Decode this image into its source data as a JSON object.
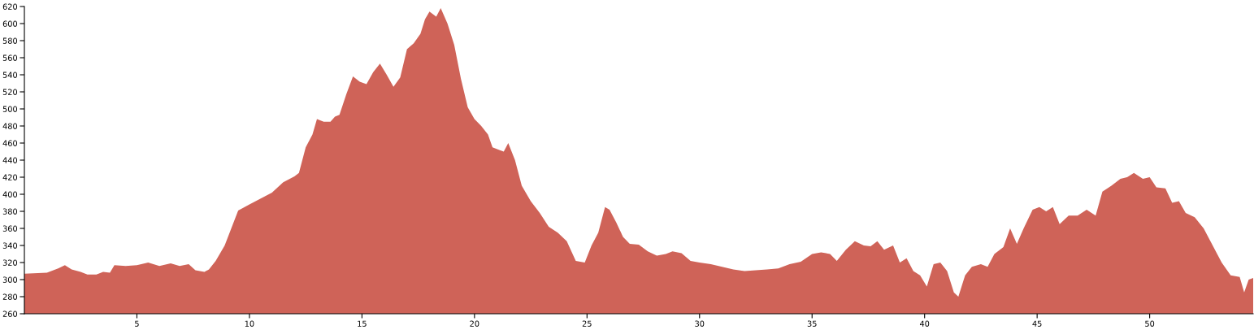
{
  "chart_data": {
    "type": "area",
    "color": "#cf6358",
    "xlim": [
      0,
      54.6
    ],
    "ylim": [
      260,
      620
    ],
    "xticks": [
      5,
      10,
      15,
      20,
      25,
      30,
      35,
      40,
      45,
      50
    ],
    "yticks": [
      260,
      280,
      300,
      320,
      340,
      360,
      380,
      400,
      420,
      440,
      460,
      480,
      500,
      520,
      540,
      560,
      580,
      600,
      620
    ],
    "grid": false,
    "legend": false,
    "x": [
      0,
      1,
      1.5,
      1.8,
      2.1,
      2.5,
      2.8,
      3.2,
      3.5,
      3.8,
      4.0,
      4.5,
      5.0,
      5.5,
      6.0,
      6.5,
      6.9,
      7.3,
      7.6,
      8.0,
      8.2,
      8.5,
      8.9,
      9.5,
      10,
      10.5,
      11,
      11.5,
      12,
      12.2,
      12.5,
      12.8,
      13.0,
      13.3,
      13.6,
      13.8,
      14.0,
      14.3,
      14.6,
      14.9,
      15.2,
      15.5,
      15.8,
      16.1,
      16.4,
      16.7,
      17.0,
      17.3,
      17.6,
      17.8,
      18.0,
      18.3,
      18.5,
      18.8,
      19.1,
      19.4,
      19.7,
      20.0,
      20.3,
      20.6,
      20.8,
      21.1,
      21.3,
      21.5,
      21.8,
      22.1,
      22.5,
      22.9,
      23.3,
      23.7,
      24.1,
      24.5,
      24.9,
      25.2,
      25.5,
      25.8,
      26.0,
      26.3,
      26.6,
      26.9,
      27.3,
      27.7,
      28.1,
      28.5,
      28.8,
      29.2,
      29.6,
      30.0,
      30.5,
      31.0,
      31.5,
      32.0,
      32.5,
      33.0,
      33.5,
      34.0,
      34.5,
      35.0,
      35.4,
      35.8,
      36.1,
      36.5,
      36.9,
      37.3,
      37.6,
      37.9,
      38.2,
      38.6,
      38.9,
      39.2,
      39.5,
      39.8,
      40.1,
      40.4,
      40.7,
      41.0,
      41.3,
      41.5,
      41.8,
      42.1,
      42.5,
      42.8,
      43.1,
      43.5,
      43.8,
      44.1,
      44.4,
      44.8,
      45.1,
      45.4,
      45.7,
      46.0,
      46.4,
      46.8,
      47.2,
      47.6,
      47.9,
      48.3,
      48.7,
      49.0,
      49.3,
      49.7,
      50.0,
      50.3,
      50.7,
      51.0,
      51.3,
      51.6,
      52.0,
      52.4,
      52.8,
      53.2,
      53.6,
      54.0,
      54.2,
      54.4,
      54.6
    ],
    "values": [
      307,
      308,
      313,
      317,
      312,
      309,
      306,
      306,
      309,
      308,
      317,
      316,
      317,
      320,
      316,
      319,
      316,
      318,
      311,
      309,
      312,
      322,
      340,
      381,
      388,
      395,
      402,
      414,
      421,
      425,
      455,
      470,
      488,
      485,
      485,
      491,
      493,
      517,
      538,
      532,
      529,
      543,
      553,
      540,
      526,
      537,
      570,
      577,
      588,
      605,
      614,
      608,
      618,
      600,
      575,
      535,
      502,
      488,
      480,
      470,
      455,
      452,
      450,
      460,
      440,
      410,
      392,
      378,
      362,
      355,
      345,
      322,
      320,
      340,
      355,
      385,
      382,
      367,
      350,
      342,
      341,
      333,
      328,
      330,
      333,
      331,
      322,
      320,
      318,
      315,
      312,
      310,
      311,
      312,
      313,
      318,
      321,
      330,
      332,
      330,
      322,
      335,
      345,
      340,
      339,
      345,
      335,
      340,
      320,
      325,
      310,
      305,
      292,
      318,
      320,
      310,
      285,
      280,
      305,
      315,
      318,
      315,
      330,
      338,
      360,
      342,
      360,
      382,
      385,
      380,
      385,
      365,
      375,
      375,
      382,
      375,
      403,
      410,
      418,
      420,
      425,
      418,
      420,
      408,
      407,
      390,
      392,
      378,
      373,
      360,
      340,
      320,
      305,
      303,
      285,
      300,
      302
    ]
  }
}
